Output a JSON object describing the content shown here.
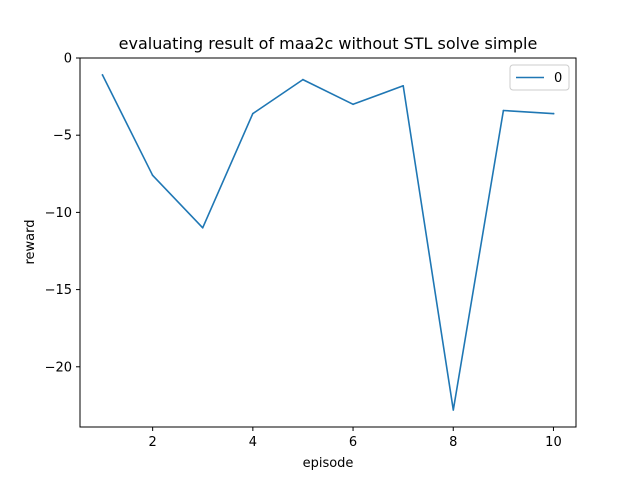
{
  "chart_data": {
    "type": "line",
    "title": "evaluating result of maa2c without STL solve simple",
    "xlabel": "episode",
    "ylabel": "reward",
    "xlim": [
      0.55,
      10.45
    ],
    "ylim": [
      -23.9,
      0
    ],
    "xticks": [
      2,
      4,
      6,
      8,
      10
    ],
    "yticks": [
      0,
      -5,
      -10,
      -15,
      -20
    ],
    "grid": false,
    "legend_position": "top-right",
    "colors": {
      "series": "#1f77b4",
      "axes": "#000000",
      "legend_border": "#cccccc"
    },
    "series": [
      {
        "name": "0",
        "x": [
          1,
          2,
          3,
          4,
          5,
          6,
          7,
          8,
          9,
          10
        ],
        "values": [
          -1.1,
          -7.6,
          -11.0,
          -3.6,
          -1.4,
          -3.0,
          -1.8,
          -22.8,
          -3.4,
          -3.6
        ]
      }
    ]
  }
}
